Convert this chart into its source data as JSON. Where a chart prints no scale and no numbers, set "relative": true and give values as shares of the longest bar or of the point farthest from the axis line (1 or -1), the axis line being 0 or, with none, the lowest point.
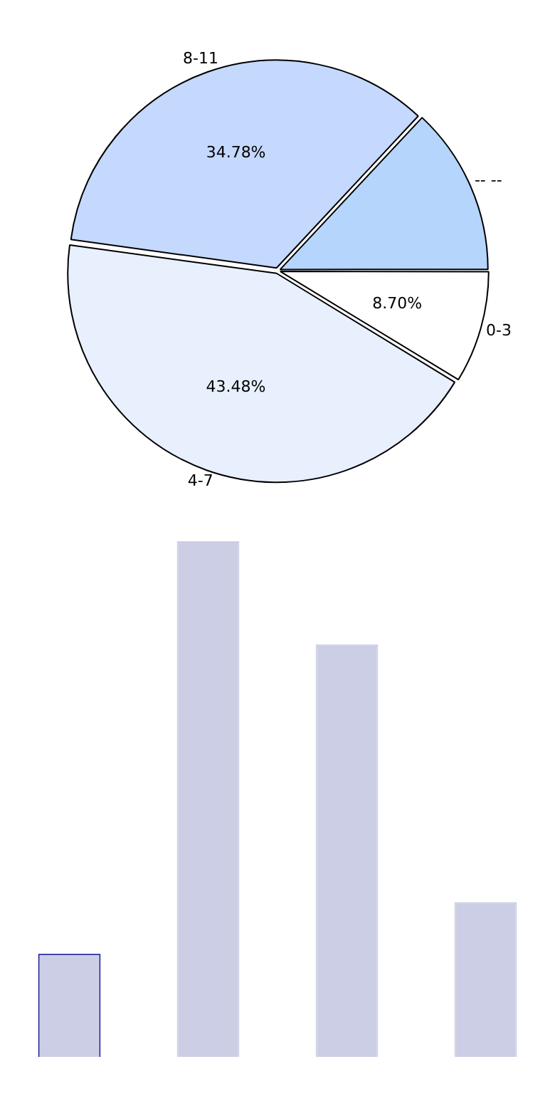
{
  "chart_data": [
    {
      "type": "pie",
      "categories": [
        "0-3",
        "4-7",
        "8-11",
        "-- --"
      ],
      "values": [
        8.7,
        43.48,
        34.78,
        13.04
      ],
      "colors": [
        "#ffffff",
        "#e8f0fe",
        "#c5d8fd",
        "#b5d5fd"
      ],
      "value_labels": [
        "8.70%",
        "43.48%",
        "34.78%",
        null
      ]
    },
    {
      "type": "bar",
      "relative": true,
      "categories": [
        null,
        null,
        null,
        null
      ],
      "values": [
        0.2,
        1,
        0.8,
        0.3
      ],
      "colors": [
        "#cccee5",
        "#cccee5",
        "#cccee5",
        "#cccee5"
      ]
    }
  ]
}
